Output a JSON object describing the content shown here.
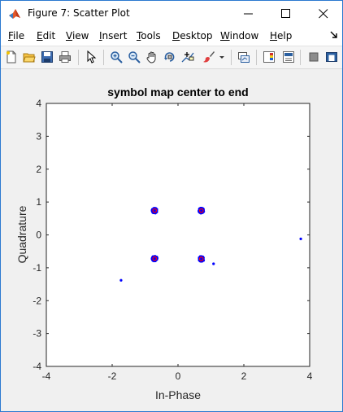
{
  "window": {
    "title": "Figure 7: Scatter Plot"
  },
  "menu": {
    "items": [
      {
        "accel": "F",
        "rest": "ile"
      },
      {
        "accel": "E",
        "rest": "dit"
      },
      {
        "accel": "V",
        "rest": "iew"
      },
      {
        "accel": "I",
        "rest": "nsert"
      },
      {
        "accel": "T",
        "rest": "ools"
      },
      {
        "accel": "D",
        "rest": "esktop"
      },
      {
        "accel": "W",
        "rest": "indow"
      },
      {
        "accel": "H",
        "rest": "elp"
      }
    ]
  },
  "toolbar": {
    "icons": [
      "new-figure-icon",
      "open-file-icon",
      "save-icon",
      "print-icon",
      "edit-plot-arrow-icon",
      "zoom-in-icon",
      "zoom-out-icon",
      "pan-icon",
      "rotate-3d-icon",
      "data-cursor-icon",
      "brush-icon",
      "brush-dropdown-icon",
      "link-plot-icon",
      "insert-colorbar-icon",
      "insert-legend-icon",
      "hide-plot-tools-icon",
      "show-plot-tools-icon"
    ]
  },
  "colors": {
    "marker": "#0000ff",
    "marker_centroid": "#ff0000",
    "axes_background": "#ffffff",
    "figure_background": "#f0f0f0"
  },
  "chart_data": {
    "type": "scatter",
    "title": "symbol map center to end",
    "xlabel": "In-Phase",
    "ylabel": "Quadrature",
    "xlim": [
      -4,
      4
    ],
    "ylim": [
      -4,
      4
    ],
    "xticks": [
      -4,
      -2,
      0,
      2,
      4
    ],
    "yticks": [
      4,
      3,
      2,
      1,
      0,
      -1,
      -2,
      -3,
      -4
    ],
    "grid": false,
    "legend": "none",
    "clusters": [
      {
        "center": [
          -0.71,
          0.74
        ],
        "spread": 0.08
      },
      {
        "center": [
          0.71,
          0.74
        ],
        "spread": 0.08
      },
      {
        "center": [
          -0.71,
          -0.72
        ],
        "spread": 0.08
      },
      {
        "center": [
          0.71,
          -0.73
        ],
        "spread": 0.08
      }
    ],
    "centroids": [
      [
        -0.71,
        0.74
      ],
      [
        0.71,
        0.74
      ],
      [
        -0.71,
        -0.72
      ],
      [
        0.71,
        -0.73
      ]
    ],
    "outliers": [
      [
        3.73,
        -0.12
      ],
      [
        1.08,
        -0.88
      ],
      [
        -1.73,
        -1.38
      ]
    ]
  }
}
